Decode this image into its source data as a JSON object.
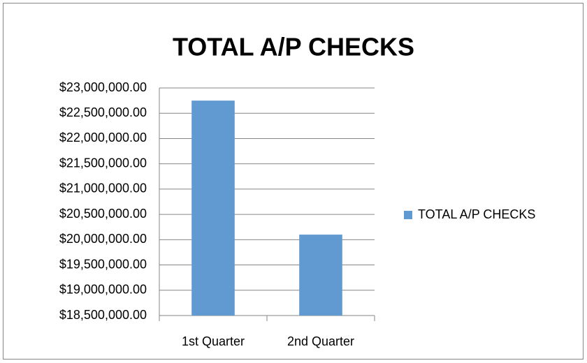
{
  "chart_data": {
    "type": "bar",
    "title": "TOTAL A/P CHECKS",
    "categories": [
      "1st Quarter",
      "2nd Quarter"
    ],
    "series": [
      {
        "name": "TOTAL A/P CHECKS",
        "color": "#6199d1",
        "values": [
          22750000,
          20100000
        ]
      }
    ],
    "ylim": [
      18500000,
      23000000
    ],
    "yticks": [
      {
        "value": 18500000,
        "label": "$18,500,000.00"
      },
      {
        "value": 19000000,
        "label": "$19,000,000.00"
      },
      {
        "value": 19500000,
        "label": "$19,500,000.00"
      },
      {
        "value": 20000000,
        "label": "$20,000,000.00"
      },
      {
        "value": 20500000,
        "label": "$20,500,000.00"
      },
      {
        "value": 21000000,
        "label": "$21,000,000.00"
      },
      {
        "value": 21500000,
        "label": "$21,500,000.00"
      },
      {
        "value": 22000000,
        "label": "$22,000,000.00"
      },
      {
        "value": 22500000,
        "label": "$22,500,000.00"
      },
      {
        "value": 23000000,
        "label": "$23,000,000.00"
      }
    ],
    "grid": true,
    "legend": "right"
  }
}
